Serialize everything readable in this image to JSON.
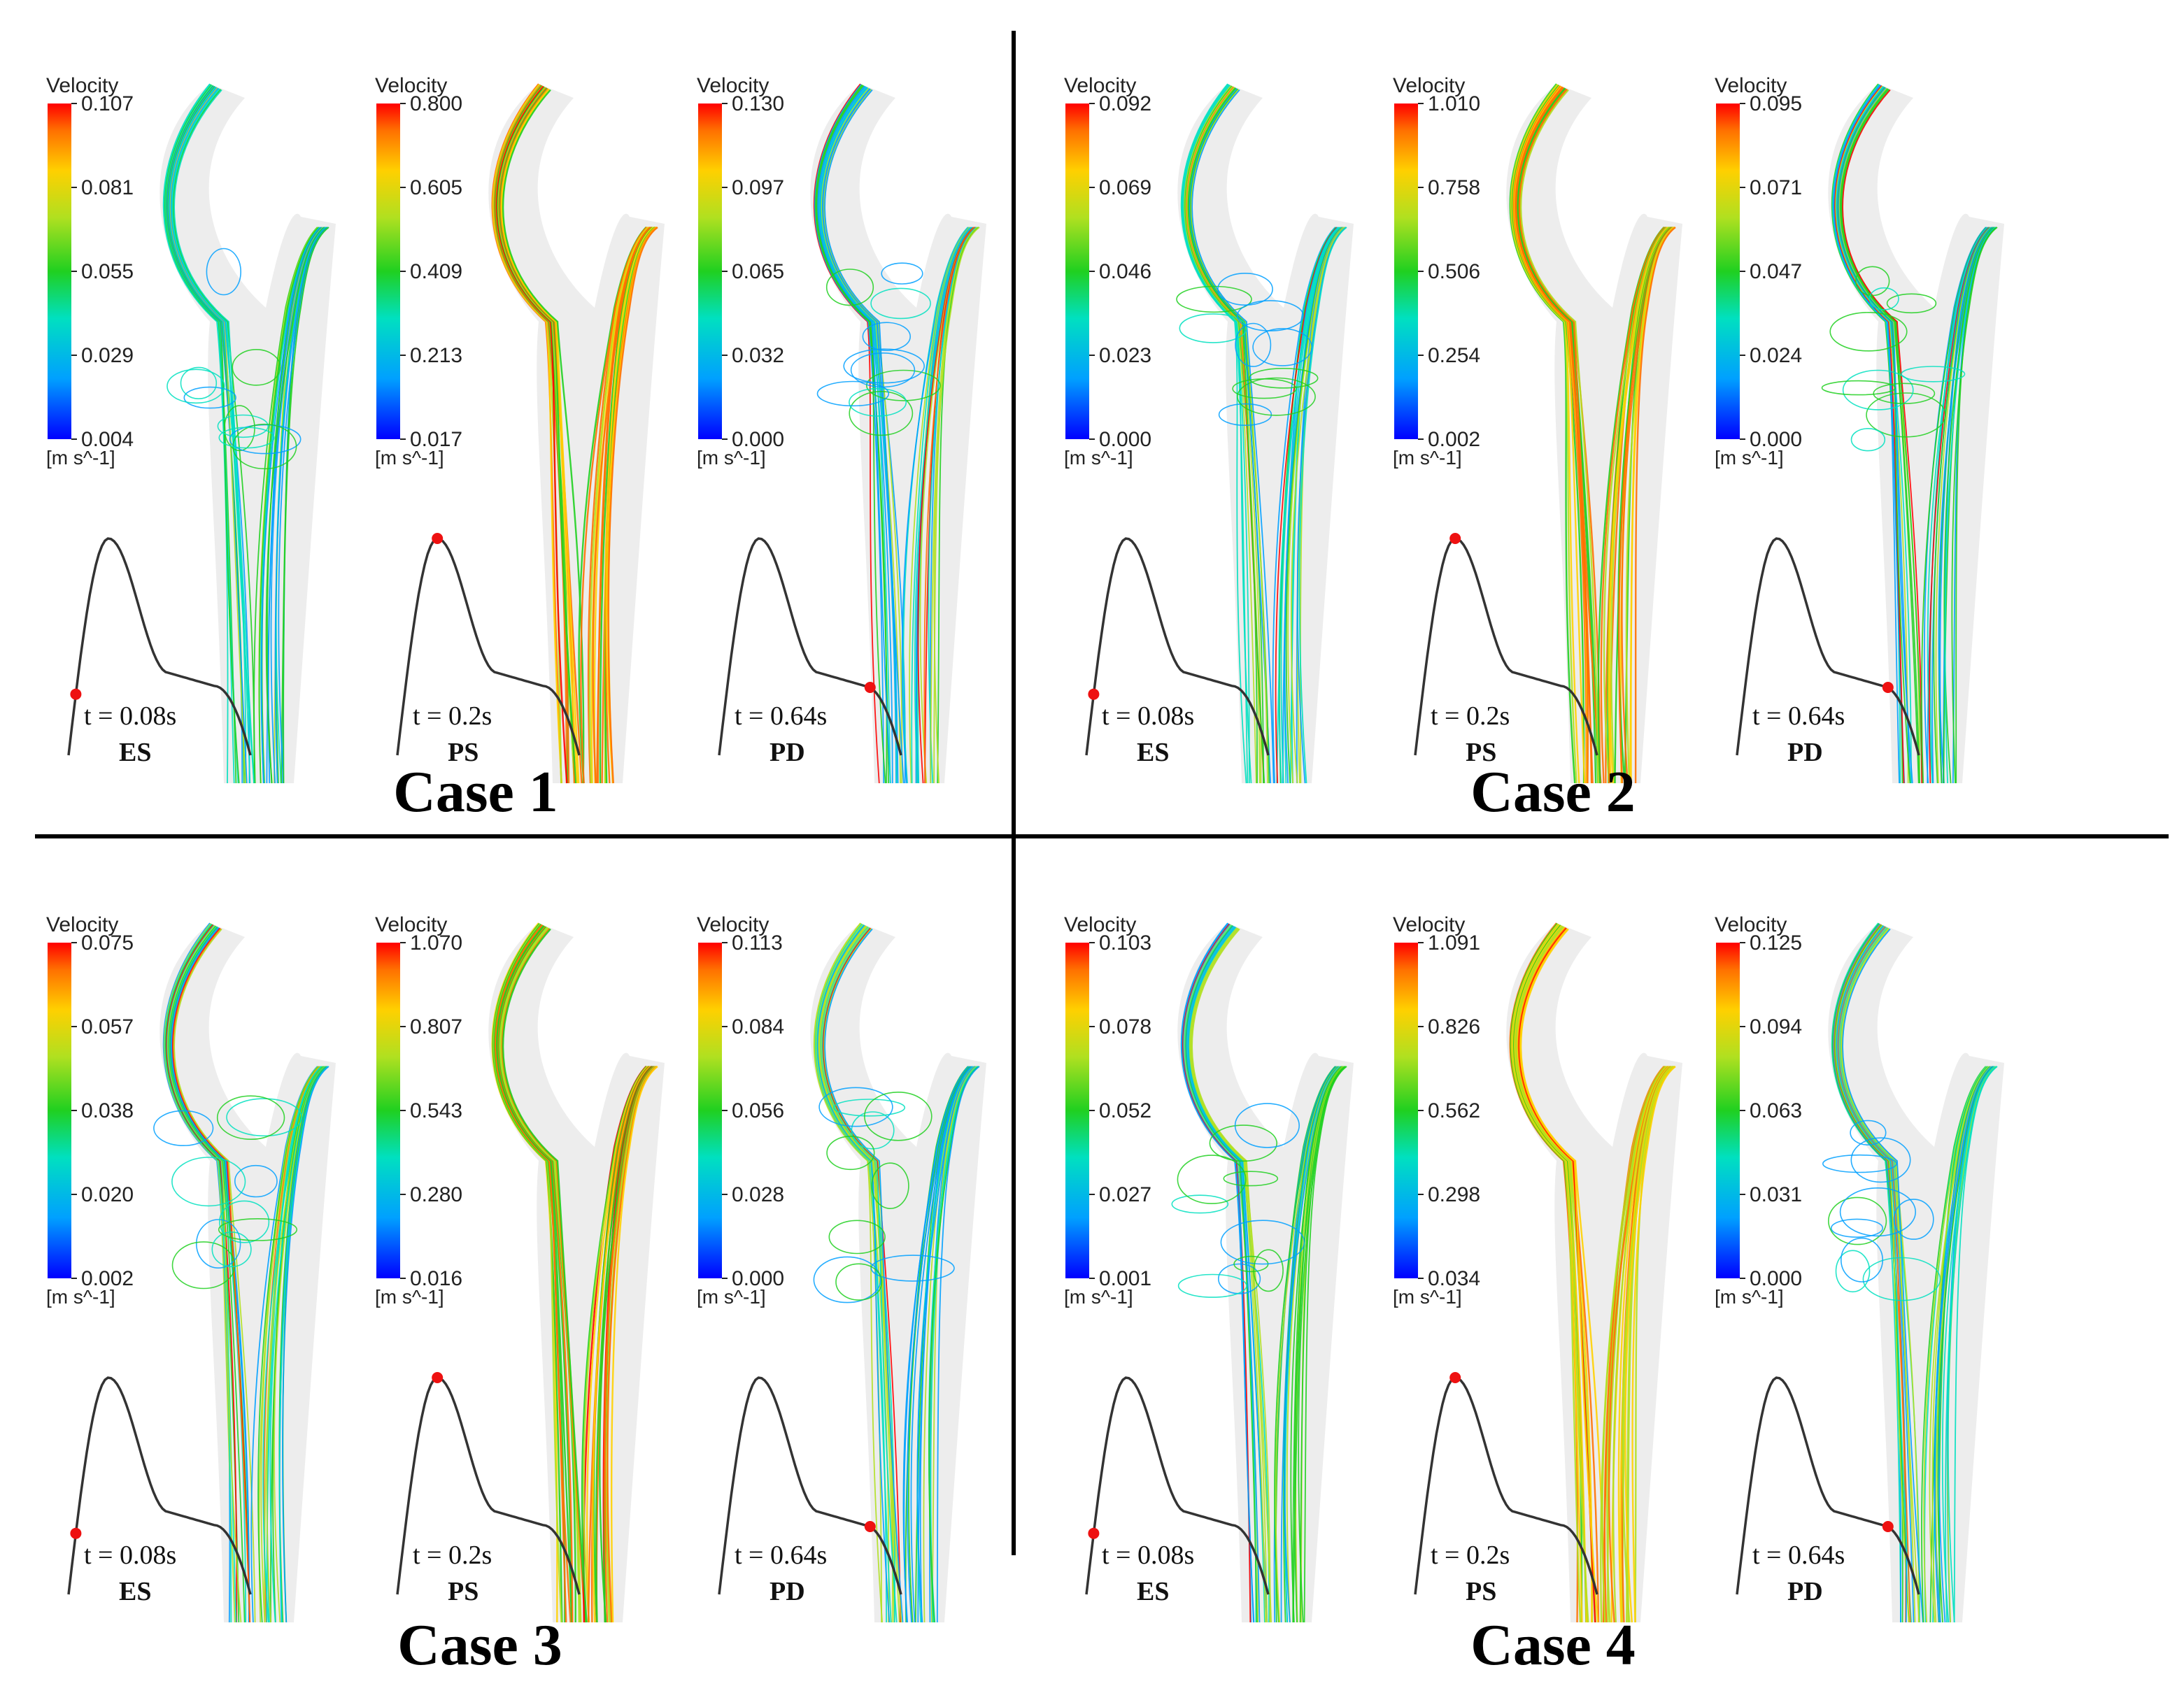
{
  "cases": [
    {
      "title": "Case 1",
      "panels": [
        {
          "legend_title": "Velocity",
          "ticks": [
            "0.107",
            "0.081",
            "0.055",
            "0.029",
            "0.004"
          ],
          "unit": "[m s^-1]",
          "time": "t = 0.08s",
          "phase": "ES"
        },
        {
          "legend_title": "Velocity",
          "ticks": [
            "0.800",
            "0.605",
            "0.409",
            "0.213",
            "0.017"
          ],
          "unit": "[m s^-1]",
          "time": "t = 0.2s",
          "phase": "PS"
        },
        {
          "legend_title": "Velocity",
          "ticks": [
            "0.130",
            "0.097",
            "0.065",
            "0.032",
            "0.000"
          ],
          "unit": "[m s^-1]",
          "time": "t = 0.64s",
          "phase": "PD"
        }
      ]
    },
    {
      "title": "Case 2",
      "panels": [
        {
          "legend_title": "Velocity",
          "ticks": [
            "0.092",
            "0.069",
            "0.046",
            "0.023",
            "0.000"
          ],
          "unit": "[m s^-1]",
          "time": "t = 0.08s",
          "phase": "ES"
        },
        {
          "legend_title": "Velocity",
          "ticks": [
            "1.010",
            "0.758",
            "0.506",
            "0.254",
            "0.002"
          ],
          "unit": "[m s^-1]",
          "time": "t = 0.2s",
          "phase": "PS"
        },
        {
          "legend_title": "Velocity",
          "ticks": [
            "0.095",
            "0.071",
            "0.047",
            "0.024",
            "0.000"
          ],
          "unit": "[m s^-1]",
          "time": "t = 0.64s",
          "phase": "PD"
        }
      ]
    },
    {
      "title": "Case 3",
      "panels": [
        {
          "legend_title": "Velocity",
          "ticks": [
            "0.075",
            "0.057",
            "0.038",
            "0.020",
            "0.002"
          ],
          "unit": "[m s^-1]",
          "time": "t = 0.08s",
          "phase": "ES"
        },
        {
          "legend_title": "Velocity",
          "ticks": [
            "1.070",
            "0.807",
            "0.543",
            "0.280",
            "0.016"
          ],
          "unit": "[m s^-1]",
          "time": "t = 0.2s",
          "phase": "PS"
        },
        {
          "legend_title": "Velocity",
          "ticks": [
            "0.113",
            "0.084",
            "0.056",
            "0.028",
            "0.000"
          ],
          "unit": "[m s^-1]",
          "time": "t = 0.64s",
          "phase": "PD"
        }
      ]
    },
    {
      "title": "Case 4",
      "panels": [
        {
          "legend_title": "Velocity",
          "ticks": [
            "0.103",
            "0.078",
            "0.052",
            "0.027",
            "0.001"
          ],
          "unit": "[m s^-1]",
          "time": "t = 0.08s",
          "phase": "ES"
        },
        {
          "legend_title": "Velocity",
          "ticks": [
            "1.091",
            "0.826",
            "0.562",
            "0.298",
            "0.034"
          ],
          "unit": "[m s^-1]",
          "time": "t = 0.2s",
          "phase": "PS"
        },
        {
          "legend_title": "Velocity",
          "ticks": [
            "0.125",
            "0.094",
            "0.063",
            "0.031",
            "0.000"
          ],
          "unit": "[m s^-1]",
          "time": "t = 0.64s",
          "phase": "PD"
        }
      ]
    }
  ],
  "colors": {
    "colormap": [
      "#0000ff",
      "#00a0ff",
      "#00e0c0",
      "#20d020",
      "#b0e020",
      "#ffd000",
      "#ff7000",
      "#ff0000"
    ],
    "marker": "#ee1111",
    "waveform": "#333333",
    "divider": "#000000",
    "vessel": "#e6e6e6"
  },
  "cardiac_phase_fraction": {
    "ES": 0.04,
    "PS": 0.22,
    "PD": 0.83
  }
}
